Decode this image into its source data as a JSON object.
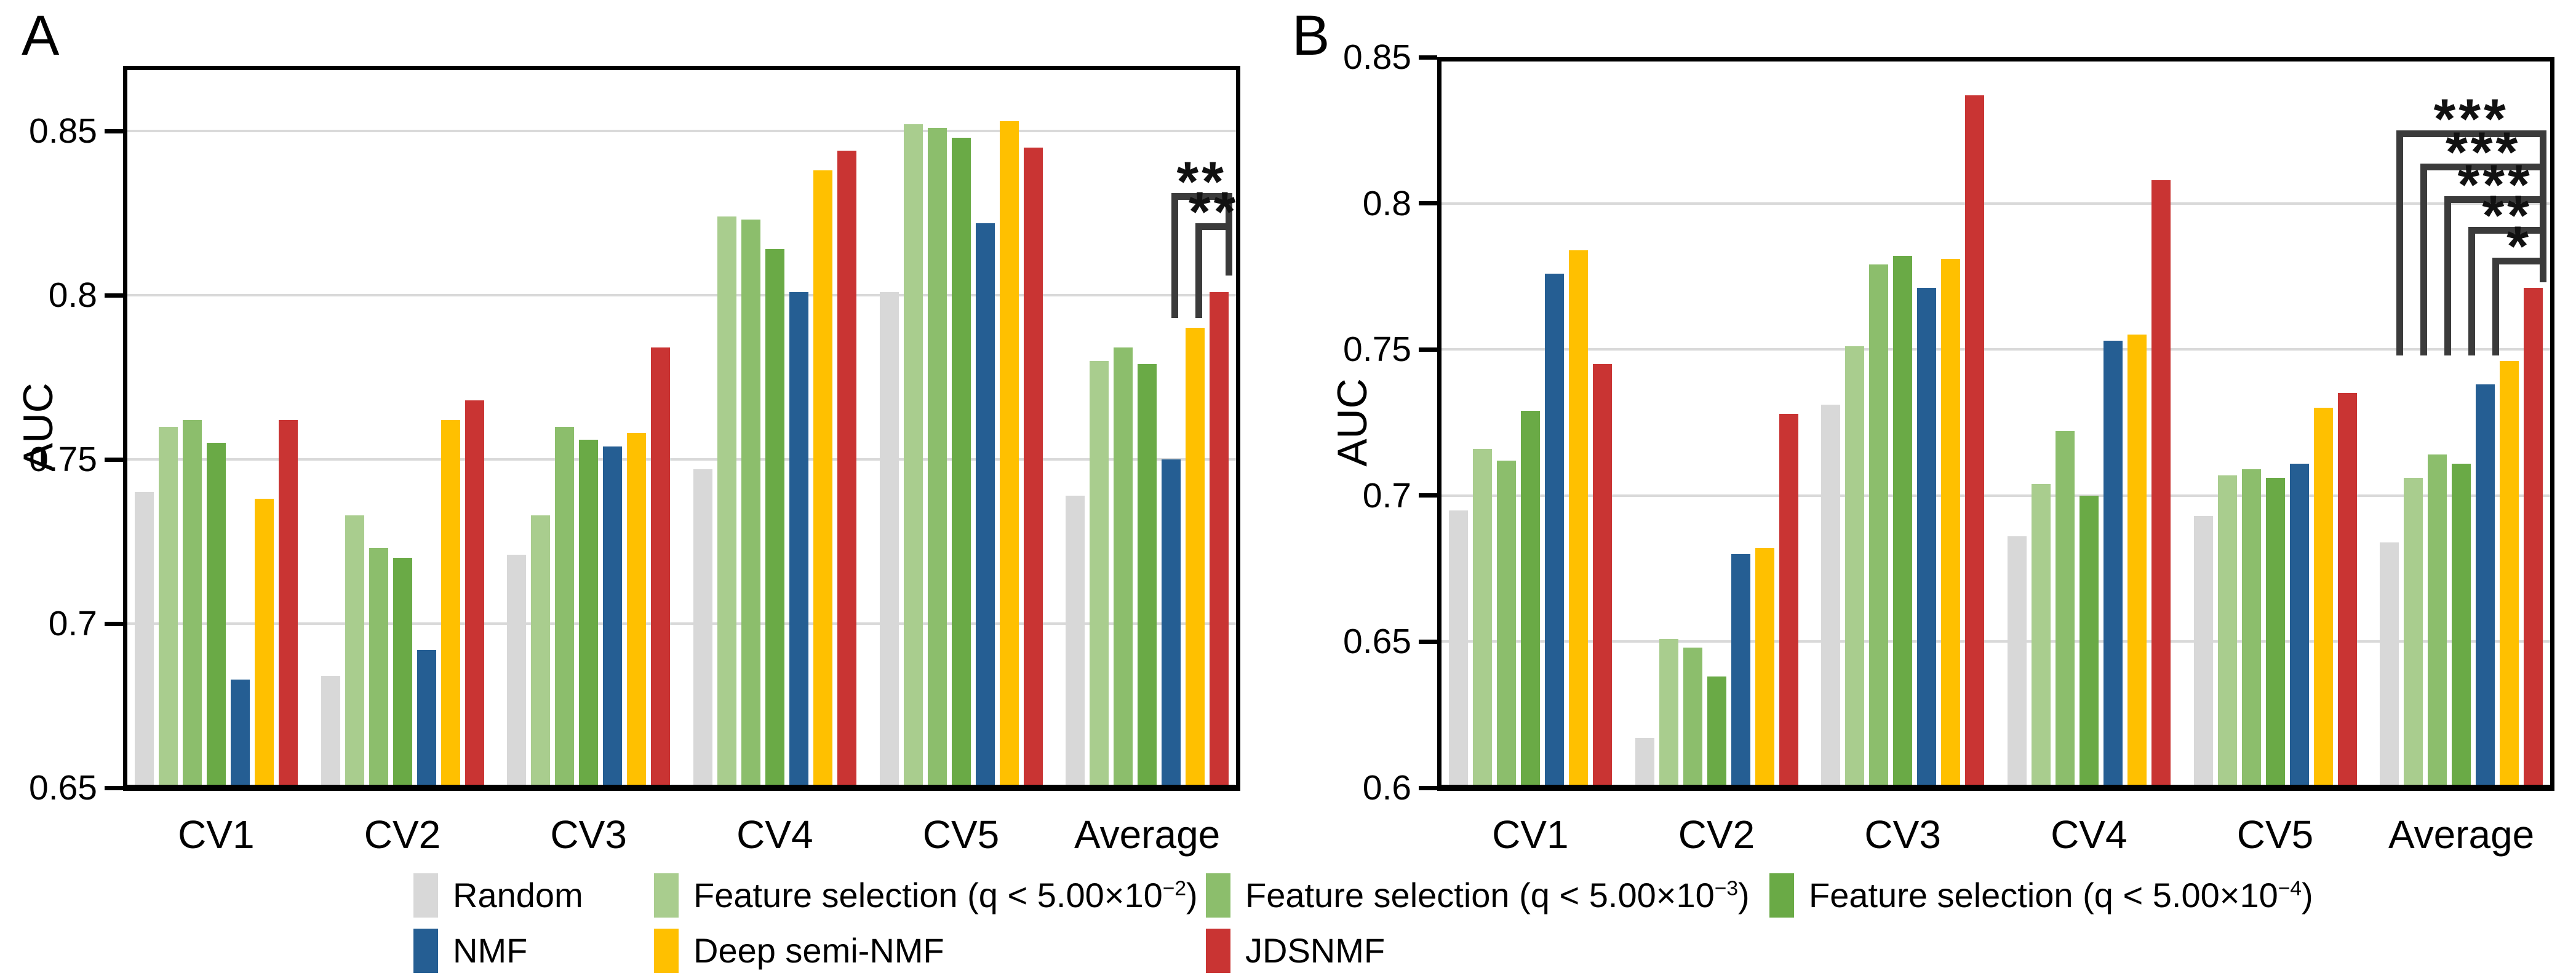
{
  "colors": {
    "random": "#D8D8D8",
    "fs2": "#A9CD8E",
    "fs3": "#8CBE6C",
    "fs4": "#6AAA46",
    "nmf": "#255E93",
    "dsnmf": "#FFC000",
    "jdsnmf": "#C93433",
    "gridline": "#D9D9D9",
    "frame": "#000000",
    "bracket": "#3B3B3B"
  },
  "legend": {
    "rows": [
      [
        {
          "key": "random",
          "pre": "Random",
          "sup": "",
          "post": ""
        },
        {
          "key": "fs2",
          "pre": "Feature selection (q < 5.00×10",
          "sup": "−2",
          "post": ")"
        },
        {
          "key": "fs3",
          "pre": "Feature selection (q < 5.00×10",
          "sup": "−3",
          "post": ")"
        },
        {
          "key": "fs4",
          "pre": "Feature selection (q < 5.00×10",
          "sup": "−4",
          "post": ")"
        }
      ],
      [
        {
          "key": "nmf",
          "pre": "NMF",
          "sup": "",
          "post": ""
        },
        {
          "key": "dsnmf",
          "pre": "Deep semi-NMF",
          "sup": "",
          "post": ""
        },
        {
          "key": "jdsnmf",
          "pre": "JDSNMF",
          "sup": "",
          "post": ""
        }
      ]
    ]
  },
  "chart_data": [
    {
      "type": "bar",
      "panel": "A",
      "ylabel": "AUC",
      "categories": [
        "CV1",
        "CV2",
        "CV3",
        "CV4",
        "CV5",
        "Average"
      ],
      "ylim": [
        0.65,
        0.85
      ],
      "grid": "horizontal",
      "yticks": [
        {
          "v": 0.65,
          "label": "0.65"
        },
        {
          "v": 0.7,
          "label": "0.7"
        },
        {
          "v": 0.75,
          "label": "0.75"
        },
        {
          "v": 0.8,
          "label": "0.8"
        },
        {
          "v": 0.85,
          "label": "0.85"
        }
      ],
      "series": [
        {
          "key": "random",
          "name": "Random",
          "values": [
            0.74,
            0.684,
            0.721,
            0.747,
            0.801,
            0.739
          ]
        },
        {
          "key": "fs2",
          "name": "Feature selection (q < 5.00×10^−2)",
          "values": [
            0.76,
            0.733,
            0.733,
            0.824,
            0.852,
            0.78
          ]
        },
        {
          "key": "fs3",
          "name": "Feature selection (q < 5.00×10^−3)",
          "values": [
            0.762,
            0.723,
            0.76,
            0.823,
            0.851,
            0.784
          ]
        },
        {
          "key": "fs4",
          "name": "Feature selection (q < 5.00×10^−4)",
          "values": [
            0.755,
            0.72,
            0.756,
            0.814,
            0.848,
            0.779
          ]
        },
        {
          "key": "nmf",
          "name": "NMF",
          "values": [
            0.683,
            0.692,
            0.754,
            0.801,
            0.822,
            0.75
          ]
        },
        {
          "key": "dsnmf",
          "name": "Deep semi-NMF",
          "values": [
            0.738,
            0.762,
            0.758,
            0.838,
            0.853,
            0.79
          ]
        },
        {
          "key": "jdsnmf",
          "name": "JDSNMF",
          "values": [
            0.762,
            0.768,
            0.784,
            0.844,
            0.845,
            0.801
          ]
        }
      ],
      "significance": [
        {
          "left_key": "nmf",
          "right_key": "jdsnmf",
          "group": "Average",
          "label": "**",
          "y": 0.831,
          "left_end": 0.793,
          "right_end": 0.806
        },
        {
          "left_key": "dsnmf",
          "right_key": "jdsnmf",
          "group": "Average",
          "label": "**",
          "y": 0.822,
          "left_end": 0.793,
          "right_end": 0.806
        }
      ]
    },
    {
      "type": "bar",
      "panel": "B",
      "ylabel": "AUC",
      "categories": [
        "CV1",
        "CV2",
        "CV3",
        "CV4",
        "CV5",
        "Average"
      ],
      "ylim": [
        0.6,
        0.85
      ],
      "grid": "horizontal",
      "yticks": [
        {
          "v": 0.6,
          "label": "0.6"
        },
        {
          "v": 0.65,
          "label": "0.65"
        },
        {
          "v": 0.7,
          "label": "0.7"
        },
        {
          "v": 0.75,
          "label": "0.75"
        },
        {
          "v": 0.8,
          "label": "0.8"
        },
        {
          "v": 0.85,
          "label": "0.85"
        }
      ],
      "series": [
        {
          "key": "random",
          "name": "Random",
          "values": [
            0.695,
            0.617,
            0.731,
            0.686,
            0.693,
            0.684
          ]
        },
        {
          "key": "fs2",
          "name": "Feature selection (q < 5.00×10^−2)",
          "values": [
            0.716,
            0.651,
            0.751,
            0.704,
            0.707,
            0.706
          ]
        },
        {
          "key": "fs3",
          "name": "Feature selection (q < 5.00×10^−3)",
          "values": [
            0.712,
            0.648,
            0.779,
            0.722,
            0.709,
            0.714
          ]
        },
        {
          "key": "fs4",
          "name": "Feature selection (q < 5.00×10^−4)",
          "values": [
            0.729,
            0.638,
            0.782,
            0.7,
            0.706,
            0.711
          ]
        },
        {
          "key": "nmf",
          "name": "NMF",
          "values": [
            0.776,
            0.68,
            0.771,
            0.753,
            0.711,
            0.738
          ]
        },
        {
          "key": "dsnmf",
          "name": "Deep semi-NMF",
          "values": [
            0.784,
            0.682,
            0.781,
            0.755,
            0.73,
            0.746
          ]
        },
        {
          "key": "jdsnmf",
          "name": "JDSNMF",
          "values": [
            0.745,
            0.728,
            0.837,
            0.808,
            0.735,
            0.771
          ]
        }
      ],
      "significance": [
        {
          "left_key": "fs2",
          "right_key": "jdsnmf",
          "group": "Average",
          "label": "***",
          "y": 0.825,
          "left_end": 0.748,
          "right_end": 0.773
        },
        {
          "left_key": "fs3",
          "right_key": "jdsnmf",
          "group": "Average",
          "label": "***",
          "y": 0.8135,
          "left_end": 0.748,
          "right_end": 0.773
        },
        {
          "left_key": "fs4",
          "right_key": "jdsnmf",
          "group": "Average",
          "label": "***",
          "y": 0.8025,
          "left_end": 0.748,
          "right_end": 0.773
        },
        {
          "left_key": "nmf",
          "right_key": "jdsnmf",
          "group": "Average",
          "label": "**",
          "y": 0.792,
          "left_end": 0.748,
          "right_end": 0.773
        },
        {
          "left_key": "dsnmf",
          "right_key": "jdsnmf",
          "group": "Average",
          "label": "*",
          "y": 0.7815,
          "left_end": 0.748,
          "right_end": 0.773
        }
      ]
    }
  ]
}
